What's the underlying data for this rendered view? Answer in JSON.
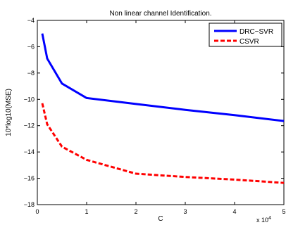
{
  "chart_data": {
    "type": "line",
    "title": "Non linear channel Identification.",
    "xlabel": "C",
    "ylabel": "10*log10(MSE)",
    "x_multiplier_label": "x 10",
    "x_multiplier_exp": "4",
    "xlim": [
      0,
      5
    ],
    "ylim": [
      -18,
      -4
    ],
    "xticks": [
      "0",
      "1",
      "2",
      "3",
      "4",
      "5"
    ],
    "yticks": [
      "-18",
      "-16",
      "-14",
      "-12",
      "-10",
      "-8",
      "-6",
      "-4"
    ],
    "grid": false,
    "legend_position": "top-right",
    "series": [
      {
        "name": "DRC−SVR",
        "color": "#0000ff",
        "style": "solid",
        "x": [
          0.1,
          0.2,
          0.5,
          1,
          2,
          3,
          4,
          5
        ],
        "y": [
          -5.0,
          -6.9,
          -8.8,
          -9.9,
          -10.35,
          -10.8,
          -11.2,
          -11.65
        ]
      },
      {
        "name": "CSVR",
        "color": "#ff0000",
        "style": "dashed",
        "x": [
          0.1,
          0.2,
          0.5,
          1,
          2,
          3,
          4,
          5
        ],
        "y": [
          -10.3,
          -11.9,
          -13.6,
          -14.6,
          -15.65,
          -15.9,
          -16.1,
          -16.35
        ]
      }
    ]
  }
}
